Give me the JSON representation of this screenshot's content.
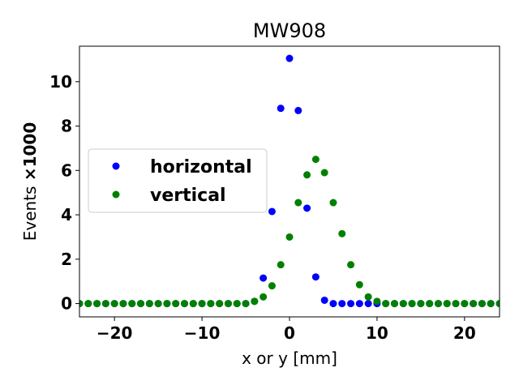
{
  "chart_data": {
    "type": "scatter",
    "title": "MW908",
    "xlabel": "x or y [mm]",
    "ylabel_prefix": "Events ",
    "ylabel_bold": "×1000",
    "xlim": [
      -24,
      24
    ],
    "ylim": [
      -0.6,
      11.6
    ],
    "xticks": [
      -20,
      -10,
      0,
      10,
      20
    ],
    "xtick_labels": [
      "−20",
      "−10",
      "0",
      "10",
      "20"
    ],
    "yticks": [
      0,
      2,
      4,
      6,
      8,
      10
    ],
    "ytick_labels": [
      "0",
      "2",
      "4",
      "6",
      "8",
      "10"
    ],
    "grid": false,
    "legend_position": "center-left",
    "series": [
      {
        "name": "horizontal",
        "color": "#0000ff",
        "x": [
          -24,
          -23,
          -22,
          -21,
          -20,
          -19,
          -18,
          -17,
          -16,
          -15,
          -14,
          -13,
          -12,
          -11,
          -10,
          -9,
          -8,
          -7,
          -6,
          -5,
          -4,
          -3,
          -2,
          -1,
          0,
          1,
          2,
          3,
          4,
          5,
          6,
          7,
          8,
          9,
          10,
          11,
          12,
          13,
          14,
          15,
          16,
          17,
          18,
          19,
          20,
          21,
          22,
          23,
          24
        ],
        "y": [
          0,
          0,
          0,
          0,
          0,
          0,
          0,
          0,
          0,
          0,
          0,
          0,
          0,
          0,
          0,
          0,
          0,
          0,
          0,
          0,
          0.1,
          1.15,
          4.15,
          8.8,
          11.05,
          8.7,
          4.3,
          1.2,
          0.15,
          0,
          0,
          0,
          0,
          0,
          0,
          0,
          0,
          0,
          0,
          0,
          0,
          0,
          0,
          0,
          0,
          0,
          0,
          0,
          0
        ]
      },
      {
        "name": "vertical",
        "color": "#008000",
        "x": [
          -24,
          -23,
          -22,
          -21,
          -20,
          -19,
          -18,
          -17,
          -16,
          -15,
          -14,
          -13,
          -12,
          -11,
          -10,
          -9,
          -8,
          -7,
          -6,
          -5,
          -4,
          -3,
          -2,
          -1,
          0,
          1,
          2,
          3,
          4,
          5,
          6,
          7,
          8,
          9,
          10,
          11,
          12,
          13,
          14,
          15,
          16,
          17,
          18,
          19,
          20,
          21,
          22,
          23,
          24
        ],
        "y": [
          0,
          0,
          0,
          0,
          0,
          0,
          0,
          0,
          0,
          0,
          0,
          0,
          0,
          0,
          0,
          0,
          0,
          0,
          0,
          0,
          0.1,
          0.3,
          0.8,
          1.75,
          3.0,
          4.55,
          5.8,
          6.5,
          5.9,
          4.55,
          3.15,
          1.75,
          0.85,
          0.3,
          0.1,
          0,
          0,
          0,
          0,
          0,
          0,
          0,
          0,
          0,
          0,
          0,
          0,
          0,
          0
        ]
      }
    ]
  }
}
